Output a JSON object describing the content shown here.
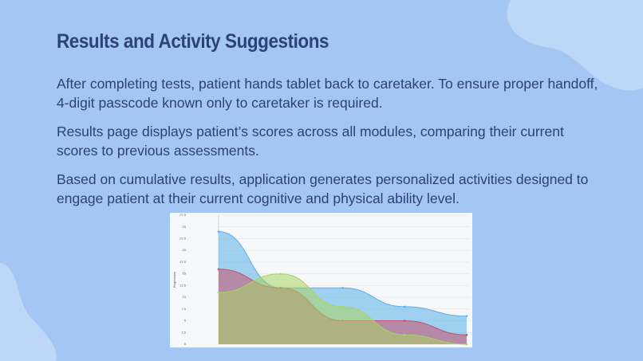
{
  "title": "Results and Activity Suggestions",
  "paragraphs": [
    "After completing tests, patient hands tablet back to caretaker. To ensure proper handoff, 4-digit passcode known only to caretaker is required.",
    "Results page displays patient’s scores across all modules, comparing their current scores to previous assessments.",
    "Based on cumulative results, application generates personalized activities designed to engage patient at their current cognitive and physical ability level."
  ],
  "chart_data": {
    "type": "area",
    "y_label": "Regression",
    "categories": [
      null,
      null,
      null,
      null,
      null
    ],
    "series": [
      {
        "color": "#5aaee8",
        "values": [
          24,
          12,
          12,
          8,
          6
        ]
      },
      {
        "color": "#c4506c",
        "values": [
          16,
          12,
          5,
          5,
          2
        ]
      },
      {
        "color": "#a9d461",
        "values": [
          11,
          15,
          8,
          2,
          0
        ]
      }
    ],
    "ylim": [
      0,
      27.5
    ],
    "yticks": [
      0,
      2.5,
      5,
      7.5,
      10,
      12.5,
      15,
      17.5,
      20,
      22.5,
      25,
      27.5
    ],
    "grid": true
  }
}
